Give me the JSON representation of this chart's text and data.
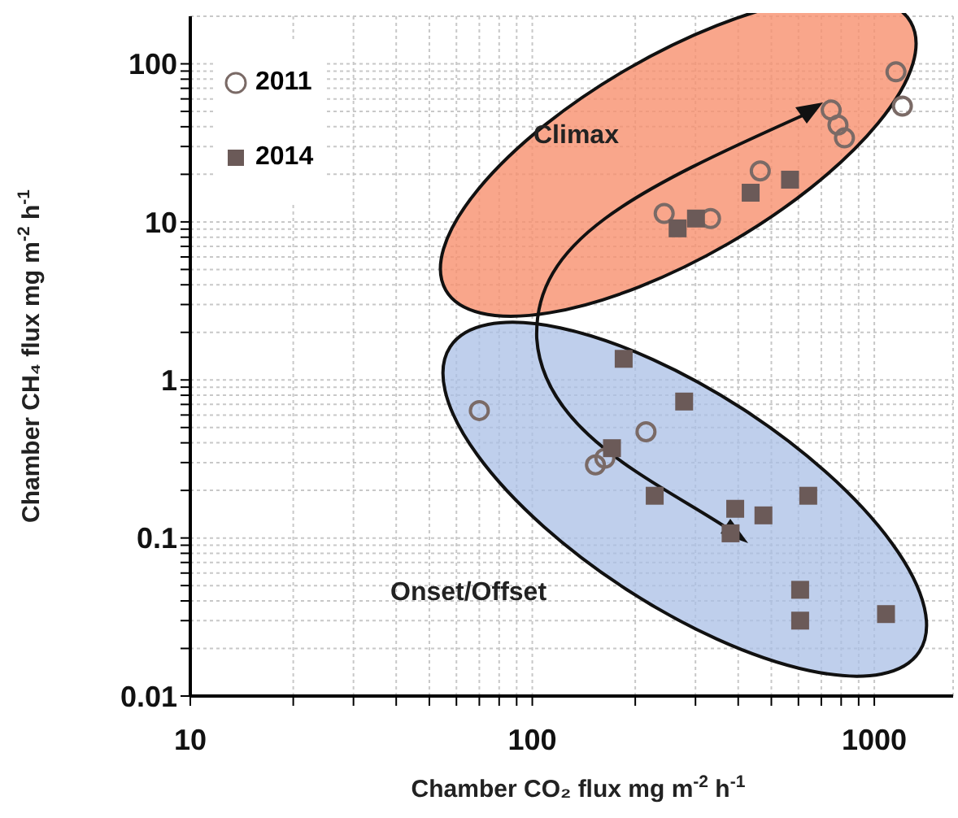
{
  "chart_data": {
    "type": "scatter",
    "xlabel": "Chamber CO₂ flux mg m$^{-2}$ h$^{-1}$",
    "ylabel": "Chamber CH₄ flux mg m$^{-2}$ h$^{-1}$",
    "log": "xy",
    "grid": true,
    "legend": "top left",
    "xlim": [
      10,
      1700
    ],
    "xticks": [
      10,
      {
        "value": 20,
        "label": null
      },
      {
        "value": 30,
        "label": null
      },
      {
        "value": 40,
        "label": null
      },
      {
        "value": 50,
        "label": null
      },
      {
        "value": 60,
        "label": null
      },
      {
        "value": 70,
        "label": null
      },
      {
        "value": 80,
        "label": null
      },
      {
        "value": 90,
        "label": null
      },
      100,
      {
        "value": 200,
        "label": null
      },
      {
        "value": 300,
        "label": null
      },
      {
        "value": 400,
        "label": null
      },
      {
        "value": 500,
        "label": null
      },
      {
        "value": 600,
        "label": null
      },
      {
        "value": 700,
        "label": null
      },
      {
        "value": 800,
        "label": null
      },
      {
        "value": 900,
        "label": null
      },
      1000
    ],
    "ylim": [
      0.01,
      200
    ],
    "yticks": [
      0.01,
      {
        "value": 0.02,
        "label": null
      },
      {
        "value": 0.03,
        "label": null
      },
      {
        "value": 0.04,
        "label": null
      },
      {
        "value": 0.05,
        "label": null
      },
      {
        "value": 0.06,
        "label": null
      },
      {
        "value": 0.07,
        "label": null
      },
      {
        "value": 0.08,
        "label": null
      },
      {
        "value": 0.09,
        "label": null
      },
      0.1,
      {
        "value": 0.2,
        "label": null
      },
      {
        "value": 0.3,
        "label": null
      },
      {
        "value": 0.4,
        "label": null
      },
      {
        "value": 0.5,
        "label": null
      },
      {
        "value": 0.6,
        "label": null
      },
      {
        "value": 0.7,
        "label": null
      },
      {
        "value": 0.8,
        "label": null
      },
      {
        "value": 0.9,
        "label": null
      },
      1,
      {
        "value": 2,
        "label": null
      },
      {
        "value": 3,
        "label": null
      },
      {
        "value": 4,
        "label": null
      },
      {
        "value": 5,
        "label": null
      },
      {
        "value": 6,
        "label": null
      },
      {
        "value": 7,
        "label": null
      },
      {
        "value": 8,
        "label": null
      },
      {
        "value": 9,
        "label": null
      },
      10,
      {
        "value": 20,
        "label": null
      },
      {
        "value": 30,
        "label": null
      },
      {
        "value": 40,
        "label": null
      },
      {
        "value": 50,
        "label": null
      },
      {
        "value": 60,
        "label": null
      },
      {
        "value": 70,
        "label": null
      },
      {
        "value": 80,
        "label": null
      },
      {
        "value": 90,
        "label": null
      },
      100
    ],
    "annotations": [
      "Climax",
      "Onset/Offset"
    ],
    "series": [
      {
        "name": "2011",
        "color": "#7a6a66",
        "marker": "circle",
        "x": [
          1157,
          1208,
          748,
          783,
          818,
          464,
          243,
          332,
          70,
          215,
          153,
          163
        ],
        "values": [
          89,
          54,
          51,
          41,
          34,
          21,
          11.3,
          10.5,
          0.64,
          0.47,
          0.29,
          0.32
        ]
      },
      {
        "name": "2014",
        "color": "#6b5a58",
        "marker": "square",
        "x": [
          567,
          435,
          301,
          266,
          185,
          278,
          171,
          228,
          392,
          380,
          474,
          641,
          607,
          607,
          1082
        ],
        "values": [
          18.5,
          15.3,
          10.5,
          9.1,
          1.36,
          0.73,
          0.37,
          0.185,
          0.153,
          0.107,
          0.139,
          0.185,
          0.047,
          0.03,
          0.033
        ]
      }
    ]
  }
}
